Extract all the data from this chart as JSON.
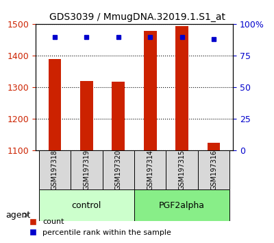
{
  "title": "GDS3039 / MmugDNA.32019.1.S1_at",
  "samples": [
    "GSM197318",
    "GSM197319",
    "GSM197320",
    "GSM197314",
    "GSM197315",
    "GSM197316"
  ],
  "counts": [
    1390,
    1320,
    1318,
    1480,
    1495,
    1125
  ],
  "percentiles": [
    90,
    90,
    90,
    90,
    90,
    88
  ],
  "groups": [
    "control",
    "control",
    "control",
    "PGF2alpha",
    "PGF2alpha",
    "PGF2alpha"
  ],
  "group_colors": {
    "control": "#ccffcc",
    "PGF2alpha": "#88ee88"
  },
  "bar_color": "#cc2200",
  "dot_color": "#0000cc",
  "ylim_left": [
    1100,
    1500
  ],
  "ylim_right": [
    0,
    100
  ],
  "yticks_left": [
    1100,
    1200,
    1300,
    1400,
    1500
  ],
  "yticks_right": [
    0,
    25,
    50,
    75,
    100
  ],
  "ytick_labels_right": [
    "0",
    "25",
    "50",
    "75",
    "100%"
  ],
  "left_axis_color": "#cc2200",
  "right_axis_color": "#0000cc",
  "bar_width": 0.4,
  "agent_label": "agent",
  "legend_count": "count",
  "legend_percentile": "percentile rank within the sample"
}
